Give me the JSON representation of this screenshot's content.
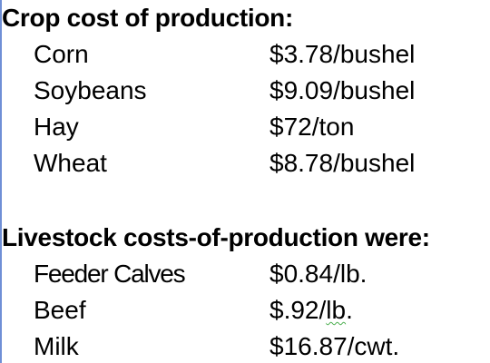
{
  "crops": {
    "heading": "Crop cost of production:",
    "rows": [
      {
        "item": "Corn",
        "value": "$3.78/bushel"
      },
      {
        "item": "Soybeans",
        "value": "$9.09/bushel"
      },
      {
        "item": "Hay",
        "value": "$72/ton"
      },
      {
        "item": "Wheat",
        "value": "$8.78/bushel"
      }
    ]
  },
  "livestock": {
    "heading": "Livestock costs-of-production were:",
    "rows": [
      {
        "item": "Feeder Calves",
        "value": "$0.84/lb."
      },
      {
        "item": "Beef",
        "value_prefix": "$.92/",
        "value_marked": "lb",
        "value_suffix": "."
      },
      {
        "item": "Milk",
        "value": "$16.87/cwt."
      }
    ]
  },
  "colors": {
    "left_rule": "#6f8fd6",
    "spellcheck_underline": "#4caf50"
  }
}
